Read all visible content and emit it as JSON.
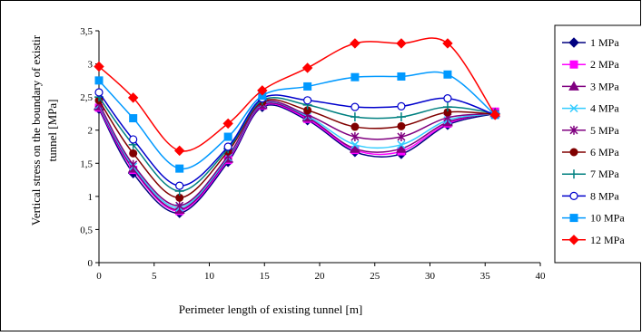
{
  "chart_data": {
    "type": "line",
    "smooth": true,
    "xlabel": "Perimeter length of existing tunnel [m]",
    "ylabel_lines": [
      "Vertical stress on the boundary of existir",
      "tunnel [MPa]"
    ],
    "xlim": [
      0,
      40
    ],
    "ylim": [
      0,
      3.5
    ],
    "x_ticks": [
      "0",
      "5",
      "10",
      "15",
      "20",
      "25",
      "30",
      "35",
      "40"
    ],
    "y_ticks": [
      "0",
      "0,5",
      "1",
      "1,5",
      "2",
      "2,5",
      "3",
      "3,5"
    ],
    "grid": false,
    "legend_position": "right",
    "x": [
      0,
      3.1,
      7.3,
      11.7,
      14.8,
      18.9,
      23.2,
      27.4,
      31.6,
      35.9
    ],
    "series": [
      {
        "name": "1 MPa",
        "color": "#000080",
        "marker": "diamond",
        "values": [
          2.32,
          1.35,
          0.75,
          1.52,
          2.35,
          2.15,
          1.67,
          1.64,
          2.08,
          2.25
        ]
      },
      {
        "name": "2 MPa",
        "color": "#ff00ff",
        "marker": "square",
        "values": [
          2.34,
          1.4,
          0.78,
          1.55,
          2.37,
          2.17,
          1.7,
          1.68,
          2.1,
          2.28
        ]
      },
      {
        "name": "3 MPa",
        "color": "#800080",
        "marker": "triangle",
        "values": [
          2.36,
          1.42,
          0.8,
          1.57,
          2.38,
          2.19,
          1.72,
          1.72,
          2.12,
          2.26
        ]
      },
      {
        "name": "4 MPa",
        "color": "#33ccff",
        "marker": "x",
        "values": [
          2.38,
          1.45,
          0.83,
          1.59,
          2.4,
          2.21,
          1.78,
          1.78,
          2.15,
          2.25
        ]
      },
      {
        "name": "5 MPa",
        "color": "#800080",
        "marker": "star",
        "values": [
          2.4,
          1.48,
          0.86,
          1.61,
          2.41,
          2.23,
          1.9,
          1.9,
          2.19,
          2.25
        ]
      },
      {
        "name": "6 MPa",
        "color": "#800000",
        "marker": "circle-filled",
        "values": [
          2.45,
          1.65,
          0.98,
          1.68,
          2.43,
          2.3,
          2.05,
          2.06,
          2.27,
          2.24
        ]
      },
      {
        "name": "7 MPa",
        "color": "#008080",
        "marker": "plus",
        "values": [
          2.5,
          1.78,
          1.08,
          1.72,
          2.45,
          2.38,
          2.2,
          2.2,
          2.35,
          2.25
        ]
      },
      {
        "name": "8 MPa",
        "color": "#0000cc",
        "marker": "circle-open",
        "values": [
          2.57,
          1.86,
          1.16,
          1.75,
          2.48,
          2.45,
          2.35,
          2.36,
          2.48,
          2.23
        ]
      },
      {
        "name": "10 MPa",
        "color": "#0099ff",
        "marker": "square",
        "values": [
          2.75,
          2.18,
          1.42,
          1.9,
          2.52,
          2.66,
          2.8,
          2.81,
          2.84,
          2.23
        ]
      },
      {
        "name": "12 MPa",
        "color": "#ff0000",
        "marker": "diamond",
        "values": [
          2.96,
          2.49,
          1.69,
          2.1,
          2.6,
          2.94,
          3.31,
          3.31,
          3.31,
          2.23
        ]
      }
    ]
  }
}
